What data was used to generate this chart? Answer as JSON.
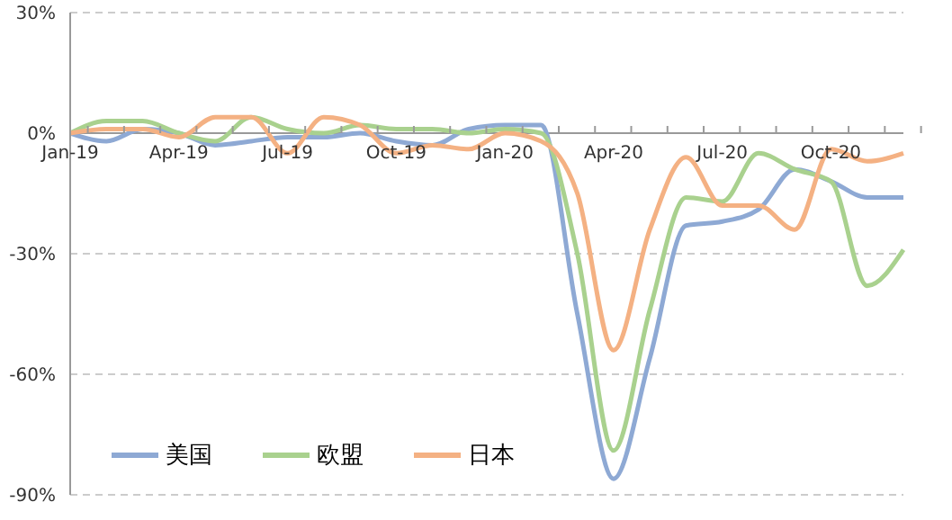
{
  "chart_data": {
    "type": "line",
    "categories": [
      "Jan-19",
      null,
      null,
      "Apr-19",
      null,
      null,
      "Jul-19",
      null,
      null,
      "Oct-19",
      null,
      null,
      "Jan-20",
      null,
      null,
      "Apr-20",
      null,
      null,
      "Jul-20",
      null,
      null,
      "Oct-20",
      null,
      null
    ],
    "series": [
      {
        "name": "美国",
        "color": "#8ea9d4",
        "values": [
          0,
          -2,
          1,
          0,
          -3,
          -2,
          -1,
          -1,
          0,
          -2,
          -3,
          1,
          2,
          2,
          -45,
          -86,
          -56,
          -23,
          -22,
          -19,
          -9,
          -12,
          -16,
          -16
        ]
      },
      {
        "name": "欧盟",
        "color": "#a9d18e",
        "values": [
          0,
          3,
          3,
          0,
          -2,
          4,
          1,
          0,
          2,
          1,
          1,
          0,
          1,
          0,
          -30,
          -79,
          -44,
          -16,
          -17,
          -5,
          -9,
          -12,
          -38,
          -29
        ]
      },
      {
        "name": "日本",
        "color": "#f4b183",
        "values": [
          0,
          1,
          1,
          -1,
          4,
          4,
          -5,
          4,
          2,
          -5,
          -3,
          -4,
          0,
          -2,
          -15,
          -54,
          -24,
          -6,
          -18,
          -18,
          -24,
          -4,
          -7,
          -5
        ]
      }
    ],
    "ylim": [
      -90,
      30
    ],
    "yticks": [
      {
        "value": -90,
        "label": "-90%"
      },
      {
        "value": -60,
        "label": "-60%"
      },
      {
        "value": -30,
        "label": "-30%"
      },
      {
        "value": 0,
        "label": "0%"
      },
      {
        "value": 30,
        "label": "30%"
      }
    ],
    "grid": "y",
    "legend": "bottom left",
    "marker": "none",
    "line_style": "solid"
  }
}
